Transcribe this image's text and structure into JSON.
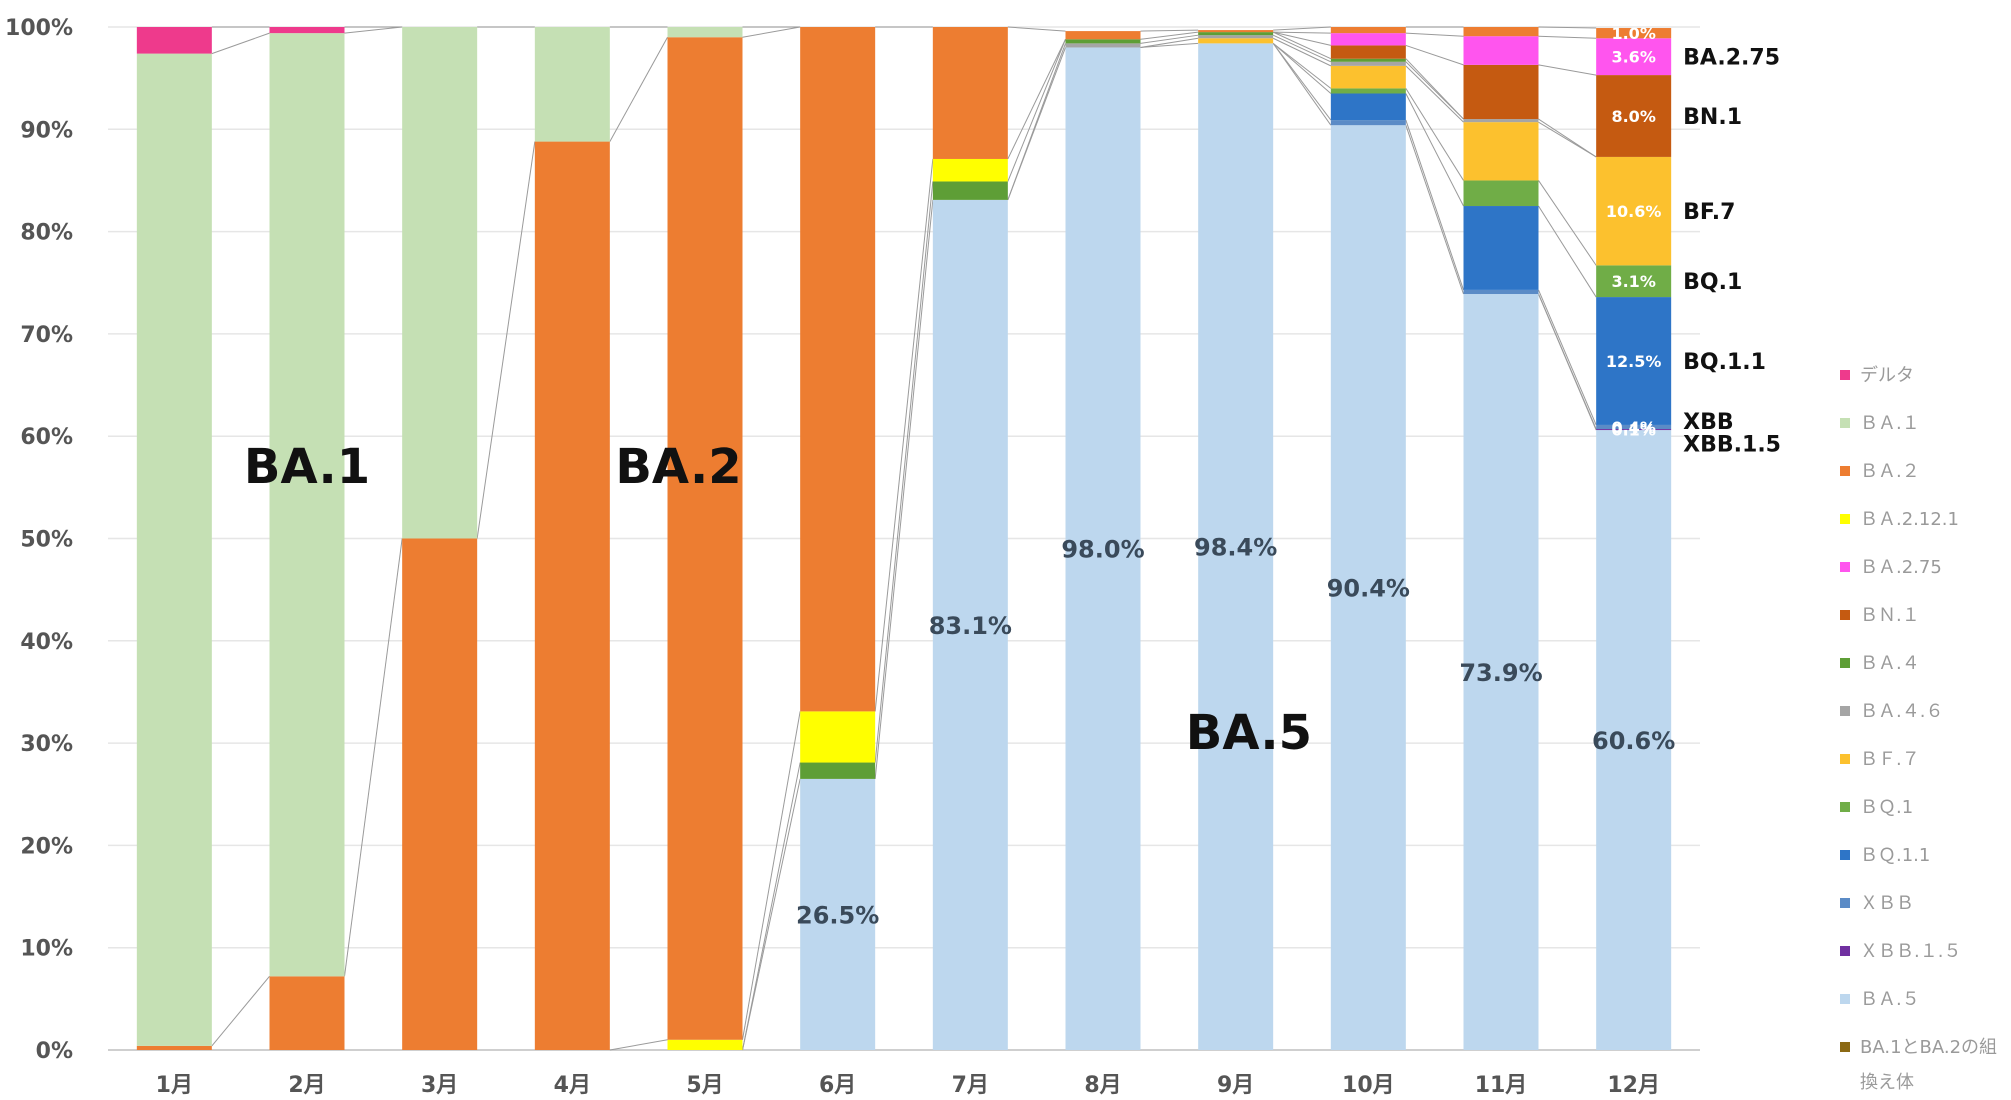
{
  "chart_data": {
    "type": "bar",
    "stacked": true,
    "ylim": [
      0,
      100
    ],
    "y_ticks": [
      "0%",
      "10%",
      "20%",
      "30%",
      "40%",
      "50%",
      "60%",
      "70%",
      "80%",
      "90%",
      "100%"
    ],
    "categories": [
      "1月",
      "2月",
      "3月",
      "4月",
      "5月",
      "6月",
      "7月",
      "8月",
      "9月",
      "10月",
      "11月",
      "12月"
    ],
    "legend_position": "right",
    "grid": true,
    "series": [
      {
        "name": "ＢＡ.５",
        "color": "#bdd7ee",
        "values": [
          0,
          0,
          0,
          0,
          0,
          26.5,
          83.1,
          98.0,
          98.4,
          90.4,
          73.9,
          60.6
        ]
      },
      {
        "name": "ＸＢＢ.１.５",
        "color": "#7030a0",
        "values": [
          0,
          0,
          0,
          0,
          0,
          0,
          0,
          0,
          0,
          0,
          0,
          0.1
        ]
      },
      {
        "name": "ＸＢＢ",
        "color": "#5b8bc6",
        "values": [
          0,
          0,
          0,
          0,
          0,
          0,
          0,
          0,
          0,
          0.5,
          0.4,
          0.4
        ]
      },
      {
        "name": "ＢＱ.1.1",
        "color": "#2e75c7",
        "values": [
          0,
          0,
          0,
          0,
          0,
          0,
          0,
          0,
          0,
          2.6,
          8.2,
          12.5
        ]
      },
      {
        "name": "ＢＱ.1",
        "color": "#70ad47",
        "values": [
          0,
          0,
          0,
          0,
          0,
          0,
          0,
          0,
          0,
          0.5,
          2.5,
          3.1
        ]
      },
      {
        "name": "ＢＦ.７",
        "color": "#fcc12e",
        "values": [
          0,
          0,
          0,
          0,
          0,
          0,
          0,
          0,
          0.5,
          2.2,
          5.7,
          10.6
        ]
      },
      {
        "name": "ＢＡ.４.６",
        "color": "#a5a5a5",
        "values": [
          0,
          0,
          0,
          0,
          0,
          0,
          0,
          0.4,
          0.3,
          0.4,
          0.3,
          0
        ]
      },
      {
        "name": "ＢＡ.４",
        "color": "#5e9e36",
        "values": [
          0,
          0,
          0,
          0,
          0,
          1.6,
          1.8,
          0.4,
          0.3,
          0.3,
          0,
          0
        ]
      },
      {
        "name": "ＢＮ.１",
        "color": "#c55a11",
        "values": [
          0,
          0,
          0,
          0,
          0,
          0,
          0,
          0,
          0,
          1.3,
          5.3,
          8.0
        ]
      },
      {
        "name": "ＢＡ.2.75",
        "color": "#ff55ee",
        "values": [
          0,
          0,
          0,
          0,
          0,
          0,
          0,
          0,
          0,
          1.2,
          2.8,
          3.6
        ]
      },
      {
        "name": "ＢＡ.2.12.1",
        "color": "#ffff00",
        "values": [
          0,
          0,
          0,
          0,
          1.0,
          5.0,
          2.2,
          0,
          0,
          0,
          0,
          0
        ]
      },
      {
        "name": "ＢＡ.２",
        "color": "#ed7d31",
        "values": [
          0.4,
          7.2,
          50.0,
          88.8,
          98.0,
          66.9,
          12.9,
          0.8,
          0.2,
          0.6,
          0.9,
          1.0
        ]
      },
      {
        "name": "ＢＡ.１",
        "color": "#c5e0b4",
        "values": [
          97.0,
          92.2,
          50.0,
          11.2,
          1.0,
          0,
          0,
          0,
          0,
          0,
          0,
          0
        ]
      },
      {
        "name": "デルタ",
        "color": "#ee3a8c",
        "values": [
          2.6,
          0.6,
          0,
          0,
          0,
          0,
          0,
          0,
          0,
          0,
          0,
          0
        ]
      },
      {
        "name": "BA.1とBA.2の組換え体",
        "color": "#8b6914",
        "values": [
          0,
          0,
          0,
          0,
          0,
          0,
          0,
          0,
          0,
          0,
          0,
          0
        ]
      }
    ],
    "legend_order": [
      "デルタ",
      "ＢＡ.１",
      "ＢＡ.２",
      "ＢＡ.2.12.1",
      "ＢＡ.2.75",
      "ＢＮ.１",
      "ＢＡ.４",
      "ＢＡ.４.６",
      "ＢＦ.７",
      "ＢＱ.1",
      "ＢＱ.1.1",
      "ＸＢＢ",
      "ＸＢＢ.１.５",
      "ＢＡ.５",
      "BA.1とBA.2の組換え体"
    ],
    "data_labels": [
      {
        "category_index": 5,
        "series": "ＢＡ.５",
        "text": "26.5%"
      },
      {
        "category_index": 6,
        "series": "ＢＡ.５",
        "text": "83.1%"
      },
      {
        "category_index": 7,
        "series": "ＢＡ.５",
        "text": "98.0%"
      },
      {
        "category_index": 8,
        "series": "ＢＡ.５",
        "text": "98.4%"
      },
      {
        "category_index": 9,
        "series": "ＢＡ.５",
        "text": "90.4%"
      },
      {
        "category_index": 10,
        "series": "ＢＡ.５",
        "text": "73.9%"
      },
      {
        "category_index": 11,
        "series": "ＢＡ.５",
        "text": "60.6%"
      },
      {
        "category_index": 11,
        "series": "ＸＢＢ.１.５",
        "text": "0.1%"
      },
      {
        "category_index": 11,
        "series": "ＸＢＢ",
        "text": "0.4%"
      },
      {
        "category_index": 11,
        "series": "ＢＱ.1.1",
        "text": "12.5%"
      },
      {
        "category_index": 11,
        "series": "ＢＱ.1",
        "text": "3.1%"
      },
      {
        "category_index": 11,
        "series": "ＢＦ.７",
        "text": "10.6%"
      },
      {
        "category_index": 11,
        "series": "ＢＮ.１",
        "text": "8.0%"
      },
      {
        "category_index": 11,
        "series": "ＢＡ.2.75",
        "text": "3.6%"
      },
      {
        "category_index": 11,
        "series": "ＢＡ.２",
        "text": "1.0%"
      }
    ],
    "side_labels": [
      {
        "series": "ＢＡ.2.75",
        "text": "BA.2.75"
      },
      {
        "series": "ＢＮ.１",
        "text": "BN.1"
      },
      {
        "series": "ＢＦ.７",
        "text": "BF.7"
      },
      {
        "series": "ＢＱ.1",
        "text": "BQ.1"
      },
      {
        "series": "ＢＱ.1.1",
        "text": "BQ.1.1"
      },
      {
        "series": "ＸＢＢ",
        "text": "XBB"
      },
      {
        "series": "ＸＢＢ.１.５",
        "text": "XBB.1.5"
      }
    ],
    "annotations": [
      {
        "text": "BA.1",
        "category_index": 1.5,
        "y": 57
      },
      {
        "text": "BA.2",
        "category_index": 4.3,
        "y": 57
      },
      {
        "text": "BA.5",
        "category_index": 8.6,
        "y": 31
      }
    ]
  }
}
